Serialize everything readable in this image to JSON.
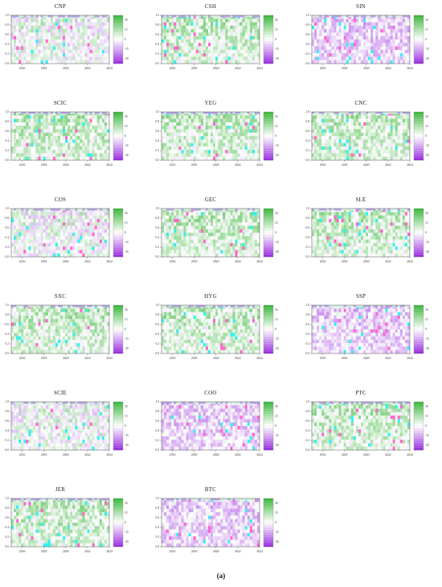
{
  "figure": {
    "caption": "(a)"
  },
  "chart_data": {
    "type": "heatmap",
    "y_ticks": [
      "0.0",
      "0.2",
      "0.4",
      "0.6",
      "0.8",
      "1.0"
    ],
    "x_ticks": [
      "2016",
      "2018",
      "2020",
      "2022",
      "2024"
    ],
    "xlim": [
      2015,
      2024
    ],
    "ylim": [
      0,
      1
    ],
    "legend_placement": "right of each panel",
    "colors": {
      "positive": "#3cb73c",
      "neutral": "#ffffff",
      "negative": "#9b30e0",
      "outlier_cyan": "#33f0f0",
      "outlier_pink": "#ff66cc"
    },
    "panels": [
      {
        "name": "CNP",
        "dominant": "mixed",
        "colorbar_ticks": [
          "30",
          "15",
          "0",
          "-15",
          "-30"
        ]
      },
      {
        "name": "CSH",
        "dominant": "positive",
        "colorbar_ticks": [
          "30",
          "15",
          "0",
          "-15",
          "-30"
        ]
      },
      {
        "name": "SIN",
        "dominant": "negative",
        "colorbar_ticks": [
          "30",
          "15",
          "0",
          "-15",
          "-30"
        ]
      },
      {
        "name": "SCIC",
        "dominant": "positive",
        "colorbar_ticks": [
          "30",
          "15",
          "0",
          "-15",
          "-30"
        ]
      },
      {
        "name": "YEG",
        "dominant": "positive",
        "colorbar_ticks": [
          "30",
          "15",
          "0",
          "-15",
          "-30"
        ]
      },
      {
        "name": "CNC",
        "dominant": "positive",
        "colorbar_ticks": [
          "30",
          "15",
          "0",
          "-15",
          "-30"
        ]
      },
      {
        "name": "COS",
        "dominant": "mixed",
        "colorbar_ticks": [
          "30",
          "15",
          "0",
          "-15",
          "-30"
        ]
      },
      {
        "name": "GEC",
        "dominant": "positive",
        "colorbar_ticks": [
          "30",
          "15",
          "0",
          "-15",
          "-30"
        ]
      },
      {
        "name": "SLE",
        "dominant": "positive",
        "colorbar_ticks": [
          "30",
          "15",
          "0",
          "-15",
          "-30"
        ]
      },
      {
        "name": "SXC",
        "dominant": "positive",
        "colorbar_ticks": [
          "30",
          "15",
          "0",
          "-15",
          "-30"
        ]
      },
      {
        "name": "HYG",
        "dominant": "positive",
        "colorbar_ticks": [
          "30",
          "15",
          "0",
          "-15",
          "-30"
        ]
      },
      {
        "name": "SSP",
        "dominant": "negative",
        "colorbar_ticks": [
          "30",
          "15",
          "0",
          "-15",
          "-30"
        ]
      },
      {
        "name": "SCIE",
        "dominant": "mixed",
        "colorbar_ticks": [
          "30",
          "15",
          "0",
          "-15",
          "-30"
        ]
      },
      {
        "name": "COO",
        "dominant": "negative",
        "colorbar_ticks": [
          "30",
          "15",
          "0",
          "-15",
          "-30"
        ]
      },
      {
        "name": "PTC",
        "dominant": "positive",
        "colorbar_ticks": [
          "30",
          "15",
          "0",
          "-15",
          "-30"
        ]
      },
      {
        "name": "JER",
        "dominant": "positive",
        "colorbar_ticks": [
          "30",
          "15",
          "0",
          "-15",
          "-30"
        ]
      },
      {
        "name": "BTC",
        "dominant": "negative",
        "colorbar_ticks": [
          "30",
          "15",
          "0",
          "-15",
          "-30"
        ]
      }
    ]
  }
}
